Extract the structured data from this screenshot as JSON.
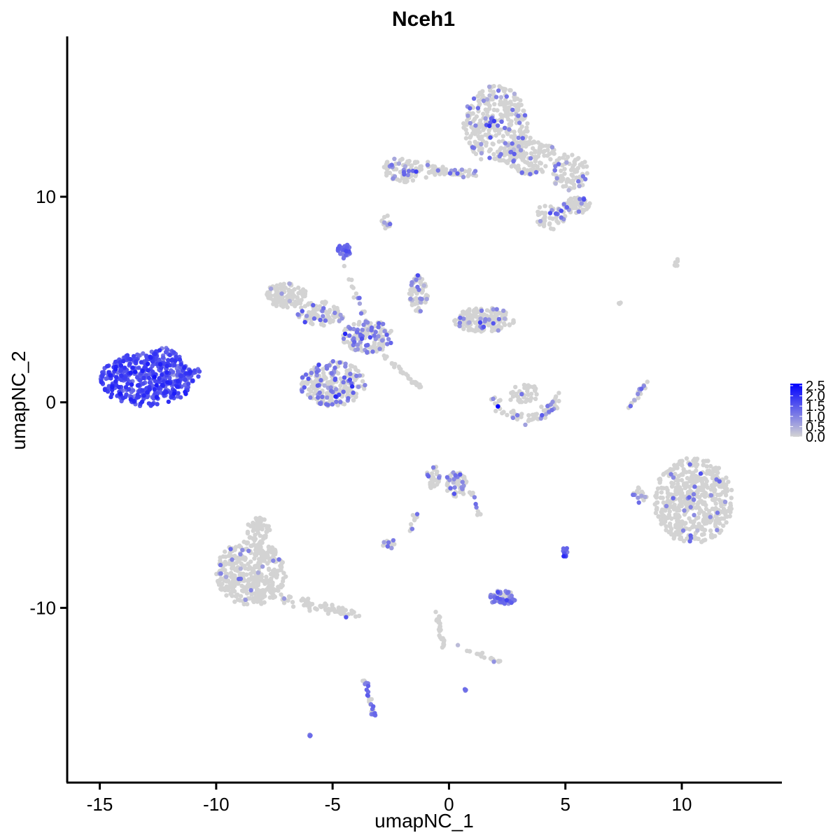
{
  "chart_data": {
    "type": "scatter",
    "title": "Nceh1",
    "xlabel": "umapNC_1",
    "ylabel": "umapNC_2",
    "xlim": [
      -16.4,
      14.3
    ],
    "ylim": [
      -18.5,
      17.8
    ],
    "x_ticks": [
      -15,
      -10,
      -5,
      0,
      5,
      10
    ],
    "y_ticks": [
      -10,
      0,
      10
    ],
    "x_tick_labels": [
      "-15",
      "-10",
      "-5",
      "0",
      "5",
      "10"
    ],
    "y_tick_labels": [
      "-10",
      "0",
      "10"
    ],
    "grid": false,
    "color_scale": {
      "low_color": "#d3d3d3",
      "high_color": "#0000ff",
      "min": 0.0,
      "max": 2.6,
      "ticks": [
        0.0,
        0.5,
        1.0,
        1.5,
        2.0,
        2.5
      ],
      "tick_labels": [
        "0.0",
        "0.5",
        "1.0",
        "1.5",
        "2.0",
        "2.5"
      ],
      "legend_position": "right"
    },
    "clusters": [
      {
        "shape": "blob",
        "cx": -13.0,
        "cy": 1.1,
        "rx": 2.0,
        "ry": 1.3,
        "n": 420,
        "expr_mean": 1.6,
        "expr_sd": 0.3,
        "expr_frac": 1.0
      },
      {
        "shape": "blob",
        "cx": -12.2,
        "cy": 2.2,
        "rx": 0.7,
        "ry": 0.45,
        "n": 40,
        "expr_mean": 1.5,
        "expr_sd": 0.3,
        "expr_frac": 1.0
      },
      {
        "shape": "blob",
        "cx": -11.2,
        "cy": 1.4,
        "rx": 0.6,
        "ry": 0.3,
        "n": 30,
        "expr_mean": 1.1,
        "expr_sd": 0.3,
        "expr_frac": 1.0
      },
      {
        "shape": "blob",
        "cx": 2.0,
        "cy": 13.5,
        "rx": 1.4,
        "ry": 1.9,
        "n": 320,
        "expr_mean": 1.0,
        "expr_sd": 0.35,
        "expr_frac": 0.12
      },
      {
        "shape": "blob",
        "cx": 3.5,
        "cy": 12.0,
        "rx": 1.1,
        "ry": 0.9,
        "n": 140,
        "expr_mean": 1.0,
        "expr_sd": 0.35,
        "expr_frac": 0.15
      },
      {
        "shape": "blob",
        "cx": 5.2,
        "cy": 11.2,
        "rx": 0.8,
        "ry": 0.9,
        "n": 90,
        "expr_mean": 1.0,
        "expr_sd": 0.35,
        "expr_frac": 0.15
      },
      {
        "shape": "blob",
        "cx": 5.5,
        "cy": 9.6,
        "rx": 0.6,
        "ry": 0.4,
        "n": 60,
        "expr_mean": 0.9,
        "expr_sd": 0.3,
        "expr_frac": 0.2
      },
      {
        "shape": "blob",
        "cx": 4.3,
        "cy": 9.0,
        "rx": 0.7,
        "ry": 0.6,
        "n": 50,
        "expr_mean": 1.0,
        "expr_sd": 0.3,
        "expr_frac": 0.15
      },
      {
        "shape": "blob",
        "cx": -2.0,
        "cy": 11.3,
        "rx": 0.9,
        "ry": 0.6,
        "n": 90,
        "expr_mean": 1.0,
        "expr_sd": 0.35,
        "expr_frac": 0.15
      },
      {
        "shape": "line",
        "x1": -1.0,
        "y1": 11.3,
        "x2": 1.2,
        "y2": 11.1,
        "n": 60,
        "spread": 0.25,
        "expr_mean": 0.9,
        "expr_sd": 0.3,
        "expr_frac": 0.15
      },
      {
        "shape": "blob",
        "cx": -2.7,
        "cy": 8.8,
        "rx": 0.2,
        "ry": 0.35,
        "n": 14,
        "expr_mean": 0.9,
        "expr_sd": 0.3,
        "expr_frac": 0.3
      },
      {
        "shape": "blob",
        "cx": -4.5,
        "cy": 7.4,
        "rx": 0.3,
        "ry": 0.3,
        "n": 25,
        "expr_mean": 1.3,
        "expr_sd": 0.3,
        "expr_frac": 1.0
      },
      {
        "shape": "blob",
        "cx": -7.0,
        "cy": 5.2,
        "rx": 0.9,
        "ry": 0.6,
        "n": 110,
        "expr_mean": 0.9,
        "expr_sd": 0.3,
        "expr_frac": 0.05
      },
      {
        "shape": "blob",
        "cx": -5.5,
        "cy": 4.3,
        "rx": 1.0,
        "ry": 0.6,
        "n": 90,
        "expr_mean": 1.0,
        "expr_sd": 0.35,
        "expr_frac": 0.15
      },
      {
        "shape": "blob",
        "cx": -3.5,
        "cy": 3.2,
        "rx": 1.1,
        "ry": 0.8,
        "n": 150,
        "expr_mean": 1.1,
        "expr_sd": 0.35,
        "expr_frac": 0.3
      },
      {
        "shape": "blob",
        "cx": -1.3,
        "cy": 5.3,
        "rx": 0.4,
        "ry": 0.9,
        "n": 70,
        "expr_mean": 1.0,
        "expr_sd": 0.35,
        "expr_frac": 0.35
      },
      {
        "shape": "blob",
        "cx": 1.5,
        "cy": 4.0,
        "rx": 1.3,
        "ry": 0.6,
        "n": 160,
        "expr_mean": 1.0,
        "expr_sd": 0.35,
        "expr_frac": 0.12
      },
      {
        "shape": "blob",
        "cx": -5.0,
        "cy": 0.9,
        "rx": 1.4,
        "ry": 1.1,
        "n": 260,
        "expr_mean": 1.1,
        "expr_sd": 0.35,
        "expr_frac": 0.25
      },
      {
        "shape": "line",
        "x1": -2.8,
        "y1": 2.3,
        "x2": -1.2,
        "y2": 0.7,
        "n": 30,
        "spread": 0.1,
        "expr_mean": 0.8,
        "expr_sd": 0.2,
        "expr_frac": 0.0
      },
      {
        "shape": "line",
        "x1": -4.6,
        "y1": 7.0,
        "x2": -3.4,
        "y2": 3.5,
        "n": 20,
        "spread": 0.15,
        "expr_mean": 1.0,
        "expr_sd": 0.3,
        "expr_frac": 0.4
      },
      {
        "shape": "arc",
        "cx": 3.3,
        "cy": 0.5,
        "r": 1.3,
        "a1": 190,
        "a2": 360,
        "n": 70,
        "spread": 0.25,
        "expr_mean": 1.0,
        "expr_sd": 0.3,
        "expr_frac": 0.15
      },
      {
        "shape": "blob",
        "cx": 3.2,
        "cy": 0.4,
        "rx": 0.7,
        "ry": 0.5,
        "n": 40,
        "expr_mean": 1.0,
        "expr_sd": 0.3,
        "expr_frac": 0.1
      },
      {
        "shape": "line",
        "x1": 7.8,
        "y1": -0.3,
        "x2": 8.5,
        "y2": 1.1,
        "n": 18,
        "spread": 0.1,
        "expr_mean": 1.0,
        "expr_sd": 0.3,
        "expr_frac": 0.3
      },
      {
        "shape": "blob",
        "cx": 10.5,
        "cy": -4.8,
        "rx": 1.7,
        "ry": 2.1,
        "n": 520,
        "expr_mean": 1.0,
        "expr_sd": 0.35,
        "expr_frac": 0.06
      },
      {
        "shape": "blob",
        "cx": 8.2,
        "cy": -4.5,
        "rx": 0.3,
        "ry": 0.4,
        "n": 18,
        "expr_mean": 0.9,
        "expr_sd": 0.3,
        "expr_frac": 0.2
      },
      {
        "shape": "blob",
        "cx": -8.5,
        "cy": -8.3,
        "rx": 1.5,
        "ry": 1.6,
        "n": 380,
        "expr_mean": 0.9,
        "expr_sd": 0.3,
        "expr_frac": 0.03
      },
      {
        "shape": "blob",
        "cx": -8.2,
        "cy": -6.2,
        "rx": 0.5,
        "ry": 0.6,
        "n": 50,
        "expr_mean": 0.9,
        "expr_sd": 0.3,
        "expr_frac": 0.02
      },
      {
        "shape": "line",
        "x1": -7.5,
        "y1": -9.5,
        "x2": -4.0,
        "y2": -10.3,
        "n": 70,
        "spread": 0.25,
        "expr_mean": 0.9,
        "expr_sd": 0.3,
        "expr_frac": 0.02
      },
      {
        "shape": "blob",
        "cx": 0.3,
        "cy": -4.0,
        "rx": 0.5,
        "ry": 0.6,
        "n": 60,
        "expr_mean": 1.0,
        "expr_sd": 0.35,
        "expr_frac": 0.25
      },
      {
        "shape": "blob",
        "cx": -0.7,
        "cy": -3.6,
        "rx": 0.3,
        "ry": 0.6,
        "n": 30,
        "expr_mean": 1.0,
        "expr_sd": 0.35,
        "expr_frac": 0.2
      },
      {
        "shape": "line",
        "x1": 0.9,
        "y1": -4.3,
        "x2": 1.3,
        "y2": -5.5,
        "n": 12,
        "spread": 0.1,
        "expr_mean": 0.9,
        "expr_sd": 0.3,
        "expr_frac": 0.2
      },
      {
        "shape": "line",
        "x1": -1.2,
        "y1": -5.0,
        "x2": -1.7,
        "y2": -6.3,
        "n": 10,
        "spread": 0.1,
        "expr_mean": 1.0,
        "expr_sd": 0.3,
        "expr_frac": 0.4
      },
      {
        "shape": "blob",
        "cx": -2.5,
        "cy": -6.9,
        "rx": 0.35,
        "ry": 0.2,
        "n": 20,
        "expr_mean": 1.0,
        "expr_sd": 0.3,
        "expr_frac": 0.3
      },
      {
        "shape": "blob",
        "cx": 2.3,
        "cy": -9.5,
        "rx": 0.6,
        "ry": 0.35,
        "n": 50,
        "expr_mean": 1.1,
        "expr_sd": 0.3,
        "expr_frac": 0.7
      },
      {
        "shape": "blob",
        "cx": 5.0,
        "cy": -7.3,
        "rx": 0.15,
        "ry": 0.25,
        "n": 12,
        "expr_mean": 1.4,
        "expr_sd": 0.3,
        "expr_frac": 1.0
      },
      {
        "shape": "line",
        "x1": -0.5,
        "y1": -10.3,
        "x2": -0.2,
        "y2": -12.0,
        "n": 25,
        "spread": 0.12,
        "expr_mean": 0.9,
        "expr_sd": 0.3,
        "expr_frac": 0.02
      },
      {
        "shape": "line",
        "x1": 0.3,
        "y1": -11.8,
        "x2": 2.4,
        "y2": -12.7,
        "n": 20,
        "spread": 0.1,
        "expr_mean": 0.9,
        "expr_sd": 0.3,
        "expr_frac": 0.1
      },
      {
        "shape": "line",
        "x1": -3.6,
        "y1": -13.5,
        "x2": -3.2,
        "y2": -15.2,
        "n": 28,
        "spread": 0.12,
        "expr_mean": 1.1,
        "expr_sd": 0.3,
        "expr_frac": 0.6
      },
      {
        "shape": "blob",
        "cx": -6.0,
        "cy": -16.2,
        "rx": 0.05,
        "ry": 0.05,
        "n": 4,
        "expr_mean": 1.1,
        "expr_sd": 0.2,
        "expr_frac": 1.0
      },
      {
        "shape": "blob",
        "cx": 0.7,
        "cy": -14.0,
        "rx": 0.05,
        "ry": 0.05,
        "n": 3,
        "expr_mean": 1.0,
        "expr_sd": 0.2,
        "expr_frac": 1.0
      },
      {
        "shape": "blob",
        "cx": 9.8,
        "cy": 6.8,
        "rx": 0.2,
        "ry": 0.2,
        "n": 6,
        "expr_mean": 0.5,
        "expr_sd": 0.2,
        "expr_frac": 0.0
      },
      {
        "shape": "blob",
        "cx": 7.3,
        "cy": 4.8,
        "rx": 0.1,
        "ry": 0.2,
        "n": 3,
        "expr_mean": 0.5,
        "expr_sd": 0.2,
        "expr_frac": 0.0
      }
    ],
    "highlight_points": [
      {
        "x": 2.1,
        "y": -0.2,
        "value": 2.6
      },
      {
        "x": -4.7,
        "y": 7.6,
        "value": 1.4
      }
    ]
  }
}
